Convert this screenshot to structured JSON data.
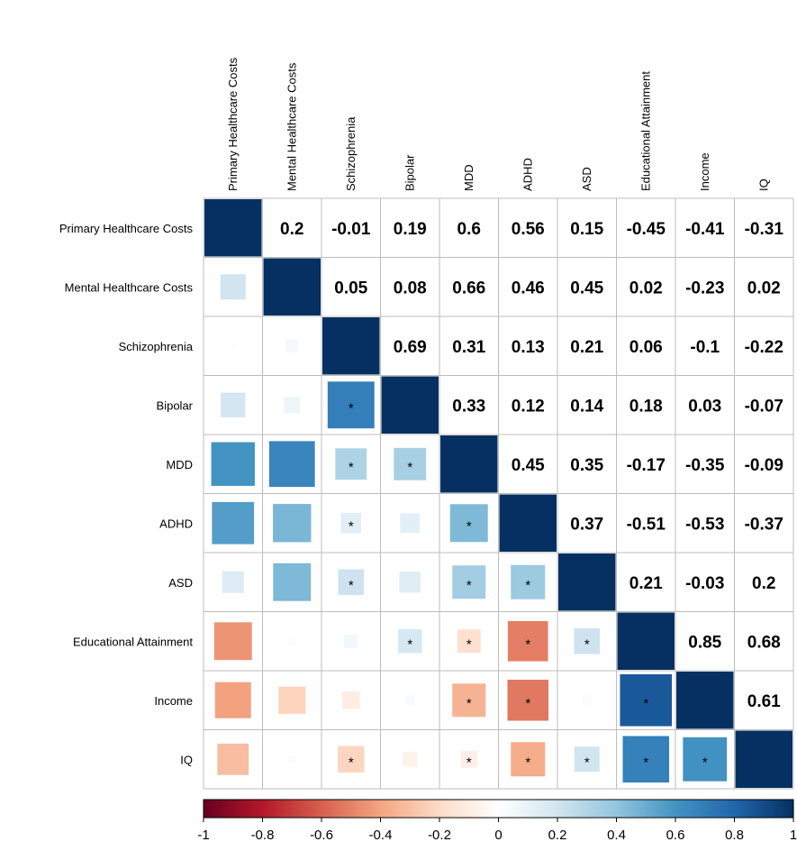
{
  "chart_data": {
    "type": "heatmap",
    "title": "",
    "variables": [
      "Primary Healthcare Costs",
      "Mental Healthcare Costs",
      "Schizophrenia",
      "Bipolar",
      "MDD",
      "ADHD",
      "ASD",
      "Educational Attainment",
      "Income",
      "IQ"
    ],
    "matrix": [
      [
        1,
        0.2,
        -0.01,
        0.19,
        0.6,
        0.56,
        0.15,
        -0.45,
        -0.41,
        -0.31
      ],
      [
        0.2,
        1,
        0.05,
        0.08,
        0.66,
        0.46,
        0.45,
        0.02,
        -0.23,
        0.02
      ],
      [
        -0.01,
        0.05,
        1,
        0.69,
        0.31,
        0.13,
        0.21,
        0.06,
        -0.1,
        -0.22
      ],
      [
        0.19,
        0.08,
        0.69,
        1,
        0.33,
        0.12,
        0.14,
        0.18,
        0.03,
        -0.07
      ],
      [
        0.6,
        0.66,
        0.31,
        0.33,
        1,
        0.45,
        0.35,
        -0.17,
        -0.35,
        -0.09
      ],
      [
        0.56,
        0.46,
        0.13,
        0.12,
        0.45,
        1,
        0.37,
        -0.51,
        -0.53,
        -0.37
      ],
      [
        0.15,
        0.45,
        0.21,
        0.14,
        0.35,
        0.37,
        1,
        0.21,
        -0.03,
        0.2
      ],
      [
        -0.45,
        0.02,
        0.06,
        0.18,
        -0.17,
        -0.51,
        0.21,
        1,
        0.85,
        0.68
      ],
      [
        -0.41,
        -0.23,
        -0.1,
        0.03,
        -0.35,
        -0.53,
        -0.03,
        0.85,
        1,
        0.61
      ],
      [
        -0.31,
        0.02,
        -0.22,
        -0.07,
        -0.09,
        -0.37,
        0.2,
        0.68,
        0.61,
        1
      ]
    ],
    "upper_labels": [
      [
        "",
        "0.2",
        "-0.01",
        "0.19",
        "0.6",
        "0.56",
        "0.15",
        "-0.45",
        "-0.41",
        "-0.31"
      ],
      [
        "",
        "",
        "0.05",
        "0.08",
        "0.66",
        "0.46",
        "0.45",
        "0.02",
        "-0.23",
        "0.02"
      ],
      [
        "",
        "",
        "",
        "0.69",
        "0.31",
        "0.13",
        "0.21",
        "0.06",
        "-0.1",
        "-0.22"
      ],
      [
        "",
        "",
        "",
        "",
        "0.33",
        "0.12",
        "0.14",
        "0.18",
        "0.03",
        "-0.07"
      ],
      [
        "",
        "",
        "",
        "",
        "",
        "0.45",
        "0.35",
        "-0.17",
        "-0.35",
        "-0.09"
      ],
      [
        "",
        "",
        "",
        "",
        "",
        "",
        "0.37",
        "-0.51",
        "-0.53",
        "-0.37"
      ],
      [
        "",
        "",
        "",
        "",
        "",
        "",
        "",
        "0.21",
        "-0.03",
        "0.2"
      ],
      [
        "",
        "",
        "",
        "",
        "",
        "",
        "",
        "",
        "0.85",
        "0.68"
      ],
      [
        "",
        "",
        "",
        "",
        "",
        "",
        "",
        "",
        "",
        "0.61"
      ],
      [
        "",
        "",
        "",
        "",
        "",
        "",
        "",
        "",
        "",
        ""
      ]
    ],
    "significance_marker": "*",
    "significant_lower": [
      [
        3,
        2
      ],
      [
        4,
        2
      ],
      [
        4,
        3
      ],
      [
        5,
        2
      ],
      [
        5,
        4
      ],
      [
        6,
        2
      ],
      [
        6,
        4
      ],
      [
        6,
        5
      ],
      [
        7,
        3
      ],
      [
        7,
        4
      ],
      [
        7,
        5
      ],
      [
        7,
        6
      ],
      [
        8,
        4
      ],
      [
        8,
        5
      ],
      [
        8,
        7
      ],
      [
        9,
        2
      ],
      [
        9,
        4
      ],
      [
        9,
        5
      ],
      [
        9,
        6
      ],
      [
        9,
        7
      ],
      [
        9,
        8
      ]
    ],
    "color_range": [
      -1,
      1
    ],
    "colorbar_ticks": [
      "-1",
      "-0.8",
      "-0.6",
      "-0.4",
      "-0.2",
      "0",
      "0.2",
      "0.4",
      "0.6",
      "0.8",
      "1"
    ],
    "color_scale": [
      "#67001F",
      "#B2182B",
      "#D6604D",
      "#F4A582",
      "#FDDBC7",
      "#FFFFFF",
      "#D1E5F0",
      "#92C5DE",
      "#4393C3",
      "#2166AC",
      "#053061"
    ],
    "legend_position": "bottom",
    "grid": true
  }
}
